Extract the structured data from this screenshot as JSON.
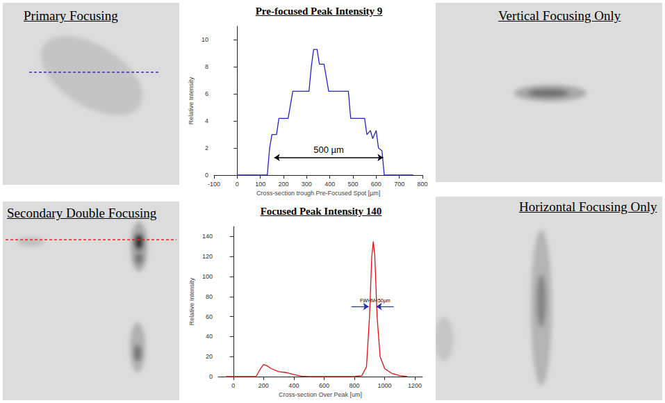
{
  "images": [
    {
      "title": "Primary Focusing"
    },
    {
      "title": "Secondary Double Focusing"
    },
    {
      "title": "Vertical Focusing Only"
    },
    {
      "title": "Horizontal Focusing Only"
    }
  ],
  "chart_data": [
    {
      "type": "line",
      "title": "Pre-focused Peak Intensity 9",
      "x_label": "Cross-section trough Pre-Focused Spot [µm]",
      "y_label": "Relative Intensity",
      "x": [
        0,
        130,
        140,
        150,
        170,
        180,
        220,
        240,
        310,
        320,
        330,
        345,
        355,
        375,
        395,
        480,
        490,
        550,
        560,
        575,
        585,
        600,
        610,
        625,
        635,
        760
      ],
      "values": [
        0,
        0,
        2,
        3,
        3,
        4.2,
        4.2,
        6.2,
        6.2,
        8,
        9.3,
        9.3,
        8.2,
        8.2,
        6.2,
        6.2,
        4.2,
        4.2,
        3,
        3.3,
        2.7,
        3.3,
        2,
        1.8,
        0,
        0
      ],
      "color": "#2222cc",
      "xlim": [
        -100,
        800
      ],
      "xticks": [
        -100,
        0,
        100,
        200,
        300,
        400,
        500,
        600,
        700,
        800
      ],
      "ylim": [
        0,
        11
      ],
      "yticks": [
        0,
        2,
        4,
        6,
        8,
        10
      ],
      "grid": false,
      "annotations": [
        {
          "text": "500 µm",
          "x_from": 160,
          "x_to": 630,
          "y": 1.3
        }
      ]
    },
    {
      "type": "line",
      "title": "Focused Peak Intensity 140",
      "x_label": "Cross-section Over Peak [um]",
      "y_label": "Relative Intensity",
      "x": [
        -50,
        150,
        180,
        200,
        220,
        250,
        300,
        350,
        400,
        450,
        500,
        800,
        850,
        880,
        900,
        915,
        925,
        935,
        950,
        970,
        1000,
        1050,
        1100,
        1150
      ],
      "values": [
        0,
        0,
        8,
        12,
        11,
        8,
        5,
        4,
        2,
        0.5,
        0,
        0,
        1,
        10,
        60,
        120,
        135,
        120,
        60,
        20,
        8,
        3,
        1,
        0
      ],
      "color": "#e01010",
      "xlim": [
        -100,
        1250
      ],
      "xticks": [
        0,
        200,
        400,
        600,
        800,
        1000,
        1200
      ],
      "ylim": [
        0,
        150
      ],
      "yticks": [
        0,
        20,
        40,
        60,
        80,
        100,
        120,
        140
      ],
      "grid": false,
      "annotations": [
        {
          "text": "FWHM<50µm",
          "x_from": 895,
          "x_to": 945,
          "y": 70
        }
      ]
    }
  ]
}
